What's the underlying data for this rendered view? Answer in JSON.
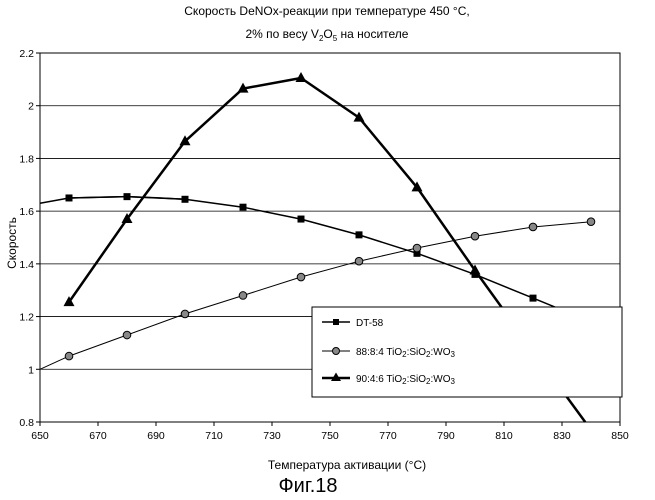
{
  "chart_data": {
    "type": "line",
    "title_line1": "Скорость DeNOx-реакции при температуре 450 °С,",
    "title_line2_parts": [
      "2% по весу V",
      "2",
      "O",
      "5",
      " на носителе"
    ],
    "xlabel": "Температура активации (°С)",
    "ylabel": "Скорость",
    "xlim": [
      650,
      850
    ],
    "ylim": [
      0.8,
      2.2
    ],
    "xticks": [
      "650",
      "670",
      "690",
      "710",
      "730",
      "750",
      "770",
      "790",
      "810",
      "830",
      "850"
    ],
    "yticks": [
      "0.8",
      "1",
      "1.2",
      "1.4",
      "1.6",
      "1.8",
      "2",
      "2.2"
    ],
    "grid": "horizontal",
    "legend_position": "bottom-right",
    "series": [
      {
        "name": "DT-58",
        "marker": "square",
        "x": [
          660,
          680,
          700,
          720,
          740,
          760,
          780,
          800,
          820,
          840
        ],
        "y": [
          1.65,
          1.655,
          1.645,
          1.615,
          1.57,
          1.51,
          1.44,
          1.36,
          1.27,
          1.18
        ],
        "curve_ext": [
          [
            650,
            1.63
          ],
          [
            660,
            1.65
          ],
          [
            670,
            1.653
          ],
          [
            680,
            1.655
          ],
          [
            690,
            1.651
          ],
          [
            700,
            1.645
          ]
        ]
      },
      {
        "name_parts": [
          "88:8:4 TiO",
          "2",
          ":SiO",
          "2",
          ":WO",
          "3"
        ],
        "marker": "circle",
        "x": [
          660,
          680,
          700,
          720,
          740,
          760,
          780,
          800,
          820,
          840
        ],
        "y": [
          1.05,
          1.13,
          1.21,
          1.28,
          1.35,
          1.41,
          1.46,
          1.505,
          1.54,
          1.56
        ],
        "curve_ext": [
          [
            650,
            1.0
          ],
          [
            660,
            1.05
          ]
        ]
      },
      {
        "name_parts": [
          "90:4:6 TiO",
          "2",
          ":SiO",
          "2",
          ":WO",
          "3"
        ],
        "marker": "triangle",
        "x": [
          660,
          680,
          700,
          720,
          740,
          760,
          780,
          800,
          820
        ],
        "y": [
          1.255,
          1.57,
          1.865,
          2.065,
          2.105,
          1.955,
          1.69,
          1.375,
          1.07
        ],
        "curve_ext": [
          [
            820,
            1.07
          ],
          [
            838,
            0.8
          ]
        ]
      }
    ]
  },
  "caption": "Фиг.18"
}
